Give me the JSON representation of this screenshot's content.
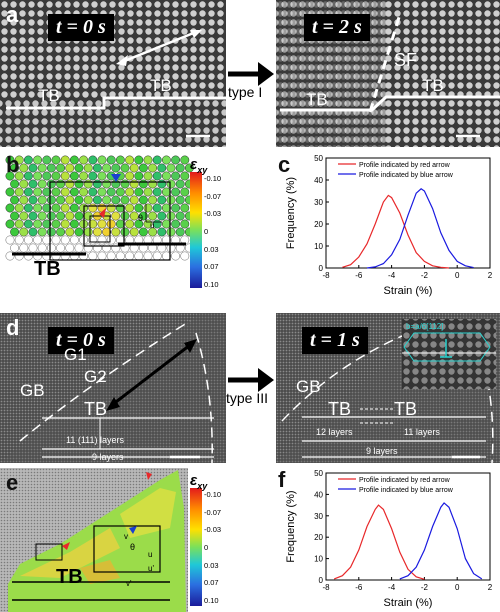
{
  "panel_a": {
    "letter": "a",
    "left": {
      "time_label": "t = 0 s",
      "tb_left": "TB",
      "tb_right": "TB"
    },
    "right": {
      "time_label": "t = 2 s",
      "sf": "SF",
      "tb_left": "TB",
      "tb_right": "TB"
    },
    "transition": "type I"
  },
  "panel_b": {
    "letter": "b",
    "tb": "TB",
    "colorbar": {
      "symbol": "ε",
      "sub": "xy",
      "ticks": [
        "-0.10",
        "-0.07",
        "-0.03",
        "0",
        "0.03",
        "0.07",
        "0.10"
      ]
    },
    "theta": "θ",
    "u": "u"
  },
  "panel_d": {
    "letter": "d",
    "left": {
      "time_label": "t = 0 s",
      "gb": "GB",
      "g1": "G1",
      "g2": "G2",
      "tb": "TB",
      "layers_111": "11 (111) layers",
      "layers_9": "9 layers"
    },
    "right": {
      "time_label": "t = 1 s",
      "gb": "GB",
      "tb_left": "TB",
      "tb_right": "TB",
      "layers_12": "12 layers",
      "layers_11": "11 layers",
      "layers_9": "9 layers",
      "inset_text": "b=a/6[112]"
    },
    "transition": "type III"
  },
  "panel_e": {
    "letter": "e",
    "tb": "TB",
    "colorbar": {
      "symbol": "ε",
      "sub": "xy",
      "ticks": [
        "-0.10",
        "-0.07",
        "-0.03",
        "0",
        "0.03",
        "0.07",
        "0.10"
      ]
    },
    "v": "v",
    "u": "u",
    "v_prime": "v'",
    "u_prime": "u'",
    "theta": "θ"
  },
  "colors": {
    "red_profile": "#e8282a",
    "blue_profile": "#1a1ae0"
  },
  "chart_data": [
    {
      "type": "line",
      "letter": "c",
      "xlabel": "Strain (%)",
      "ylabel": "Frequency (%)",
      "xlim": [
        -8,
        2
      ],
      "ylim": [
        0,
        50
      ],
      "xticks": [
        "-8",
        "-6",
        "-4",
        "-2",
        "0",
        "2"
      ],
      "yticks": [
        "0",
        "10",
        "20",
        "30",
        "40",
        "50"
      ],
      "legend_position": "top-right",
      "series": [
        {
          "name": "Profile indicated by red arrow",
          "color": "#e8282a",
          "x": [
            -7,
            -6.5,
            -6,
            -5.5,
            -5,
            -4.5,
            -4.2,
            -4,
            -3.5,
            -3,
            -2.5,
            -2,
            -1.5,
            -1,
            -0.5
          ],
          "y": [
            0.3,
            1.5,
            5,
            11,
            20,
            30,
            33,
            32,
            25,
            15,
            7,
            3,
            1,
            0.3,
            0
          ]
        },
        {
          "name": "Profile indicated by blue arrow",
          "color": "#1a1ae0",
          "x": [
            -5.5,
            -5,
            -4.5,
            -4,
            -3.5,
            -3,
            -2.5,
            -2.2,
            -2,
            -1.5,
            -1,
            -0.5,
            0,
            0.5,
            1
          ],
          "y": [
            0,
            0.5,
            2,
            6,
            13,
            24,
            34,
            36,
            35,
            27,
            16,
            8,
            3,
            1,
            0.2
          ]
        }
      ]
    },
    {
      "type": "line",
      "letter": "f",
      "xlabel": "Strain (%)",
      "ylabel": "Frequency (%)",
      "xlim": [
        -8,
        2
      ],
      "ylim": [
        0,
        50
      ],
      "xticks": [
        "-8",
        "-6",
        "-4",
        "-2",
        "0",
        "2"
      ],
      "yticks": [
        "0",
        "10",
        "20",
        "30",
        "40",
        "50"
      ],
      "legend_position": "top-right",
      "series": [
        {
          "name": "Profile indicated by red arrow",
          "color": "#e8282a",
          "x": [
            -7.5,
            -7,
            -6.5,
            -6,
            -5.5,
            -5,
            -4.8,
            -4.5,
            -4,
            -3.5,
            -3,
            -2.5,
            -2
          ],
          "y": [
            0.5,
            2,
            6,
            14,
            25,
            33,
            35,
            33,
            24,
            13,
            5,
            1.5,
            0.3
          ]
        },
        {
          "name": "Profile indicated by blue arrow",
          "color": "#1a1ae0",
          "x": [
            -3.5,
            -3,
            -2.5,
            -2,
            -1.5,
            -1,
            -0.8,
            -0.5,
            0,
            0.5,
            1,
            1.5
          ],
          "y": [
            0.5,
            2,
            6,
            14,
            25,
            34,
            36,
            34,
            24,
            10,
            3,
            0.5
          ]
        }
      ]
    }
  ]
}
